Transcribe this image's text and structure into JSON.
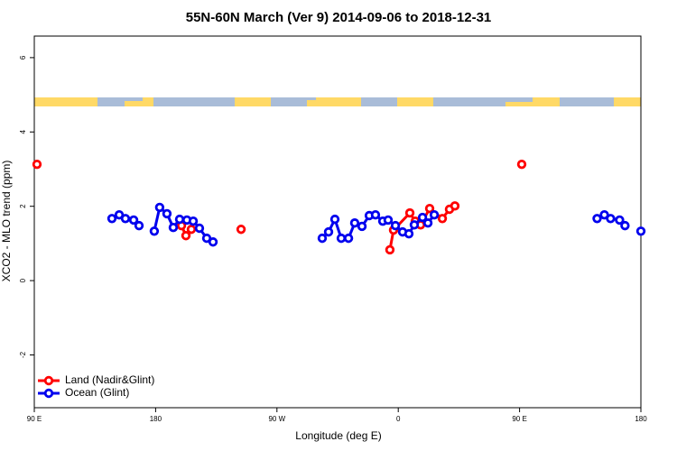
{
  "chart_data": {
    "type": "line",
    "title": "55N-60N March (Ver 9)   2014-09-06 to 2018-12-31",
    "xlabel": "Longitude (deg E)",
    "ylabel": "XCO2 - MLO trend (ppm)",
    "xlim": [
      90,
      540
    ],
    "ylim": [
      -3.42,
      6.58
    ],
    "xticks": [
      {
        "value": 90,
        "label": "90 E"
      },
      180,
      {
        "value": 270,
        "label": "90 W"
      },
      {
        "value": 360,
        "label": "0"
      },
      {
        "value": 450,
        "label": "90 E"
      },
      {
        "value": 540,
        "label": "180"
      }
    ],
    "yticks": [
      -2,
      0,
      2,
      4,
      6
    ],
    "legend": "bottom-left",
    "series": [
      {
        "name": "Land (Nadir&Glint)",
        "color": "#ff0000",
        "x": [
          92,
          null,
          199.2,
          202.5,
          206.5,
          null,
          243.4,
          null,
          353.8,
          356.5,
          368.6,
          372.6,
          376.6,
          383.3,
          392.7,
          398,
          402,
          null,
          451.6
        ],
        "values": [
          3.13,
          null,
          1.48,
          1.21,
          1.38,
          null,
          1.38,
          null,
          0.83,
          1.36,
          1.82,
          1.6,
          1.5,
          1.94,
          1.67,
          1.92,
          2.01,
          null,
          3.13
        ]
      },
      {
        "name": "Ocean (Glint)",
        "color": "#0000ee",
        "x": [
          147.6,
          153,
          157.6,
          163.7,
          167.7,
          null,
          179,
          183,
          188.4,
          193.1,
          197.8,
          203.2,
          207.9,
          212.5,
          217.9,
          222.6,
          null,
          303.6,
          308.3,
          313,
          317.7,
          323.1,
          327.7,
          333.1,
          338.5,
          343.1,
          348.5,
          352.5,
          357.9,
          363.2,
          367.9,
          371.9,
          378,
          382,
          386.7,
          null,
          507.5,
          512.9,
          517.5,
          524.2,
          528.2,
          null,
          540
        ],
        "values": [
          1.67,
          1.77,
          1.67,
          1.63,
          1.48,
          null,
          1.33,
          1.97,
          1.8,
          1.43,
          1.65,
          1.63,
          1.6,
          1.41,
          1.14,
          1.04,
          null,
          1.14,
          1.31,
          1.65,
          1.14,
          1.14,
          1.55,
          1.46,
          1.75,
          1.77,
          1.6,
          1.63,
          1.48,
          1.31,
          1.26,
          1.5,
          1.7,
          1.55,
          1.77,
          null,
          1.67,
          1.77,
          1.67,
          1.63,
          1.48,
          null,
          1.33
        ]
      }
    ]
  }
}
